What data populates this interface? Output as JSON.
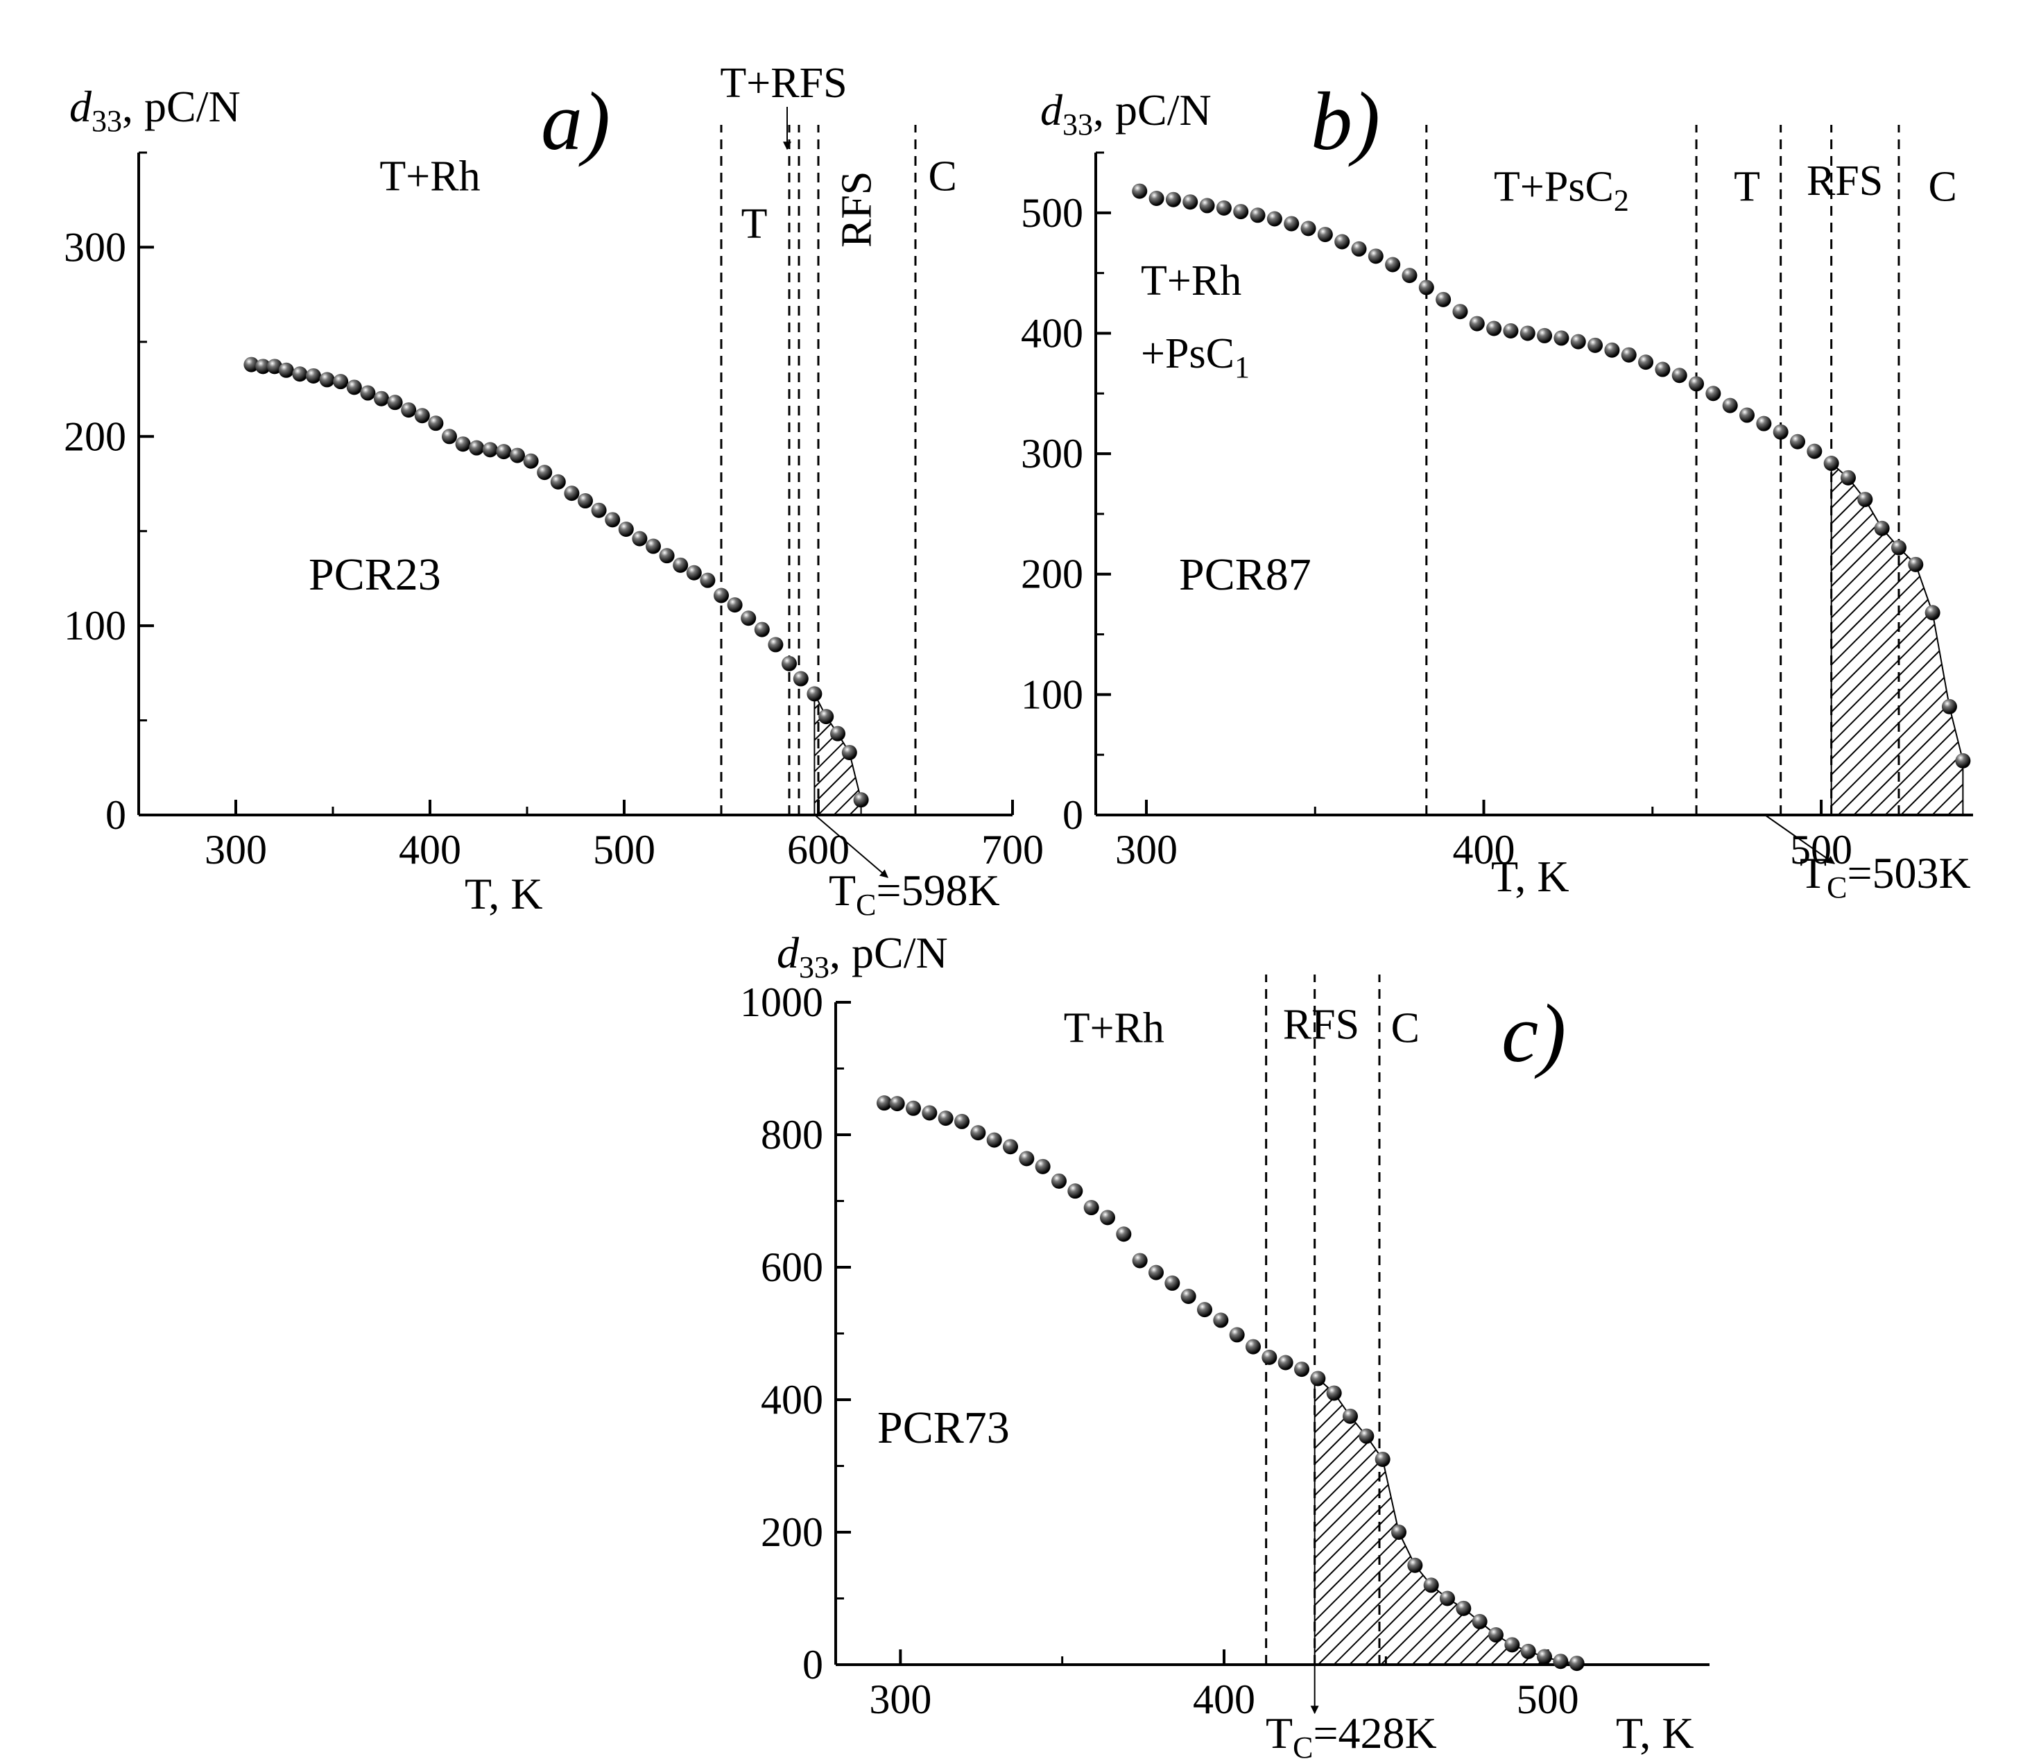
{
  "chart_data": [
    {
      "panel": "a)",
      "type": "scatter",
      "sample": "PCR23",
      "xlabel": "T, K",
      "ylabel": {
        "symbol": "d",
        "subscript": "33",
        "unit": ", pC/N"
      },
      "xlim": [
        250,
        700
      ],
      "ylim": [
        0,
        350
      ],
      "xticks": [
        300,
        400,
        500,
        600,
        700
      ],
      "yticks": [
        0,
        100,
        200,
        300
      ],
      "x": [
        308,
        314,
        320,
        326,
        333,
        340,
        347,
        354,
        361,
        368,
        375,
        382,
        389,
        396,
        403,
        410,
        417,
        424,
        431,
        438,
        445,
        452,
        459,
        466,
        473,
        480,
        487,
        494,
        501,
        508,
        515,
        522,
        529,
        536,
        543,
        550,
        557,
        564,
        571,
        578,
        585,
        591,
        598,
        604,
        610,
        616,
        622
      ],
      "y": [
        238,
        237,
        237,
        235,
        233,
        232,
        230,
        229,
        226,
        223,
        220,
        218,
        214,
        211,
        207,
        200,
        196,
        194,
        193,
        192,
        190,
        187,
        181,
        176,
        170,
        166,
        161,
        156,
        151,
        146,
        142,
        137,
        132,
        128,
        124,
        116,
        111,
        104,
        98,
        90,
        80,
        72,
        64,
        52,
        43,
        33,
        8
      ],
      "vlines": [
        550,
        585,
        590,
        600,
        650
      ],
      "hatch_from": 598,
      "tc": {
        "text": "T",
        "sub": "C",
        "rest": "=598K",
        "value": 598
      },
      "regions": [
        {
          "text": "T+Rh",
          "x": 400,
          "y": 330,
          "rotate": false
        },
        {
          "text": "T",
          "x": 567,
          "y": 305,
          "rotate": false
        },
        {
          "text": "RFS",
          "x": 627,
          "y": 320,
          "rotate": true
        },
        {
          "text": "C",
          "x": 664,
          "y": 330,
          "rotate": false
        }
      ],
      "top_label": "T+RFS"
    },
    {
      "panel": "b)",
      "type": "scatter",
      "sample": "PCR87",
      "xlabel": "T, K",
      "ylabel": {
        "symbol": "d",
        "subscript": "33",
        "unit": ", pC/N"
      },
      "xlim": [
        285,
        545
      ],
      "ylim": [
        0,
        550
      ],
      "xticks": [
        300,
        400,
        500
      ],
      "yticks": [
        0,
        100,
        200,
        300,
        400,
        500
      ],
      "x": [
        298,
        303,
        308,
        313,
        318,
        323,
        328,
        333,
        338,
        343,
        348,
        353,
        358,
        363,
        368,
        373,
        378,
        383,
        388,
        393,
        398,
        403,
        408,
        413,
        418,
        423,
        428,
        433,
        438,
        443,
        448,
        453,
        458,
        463,
        468,
        473,
        478,
        483,
        488,
        493,
        498,
        503,
        508,
        513,
        518,
        523,
        528,
        533,
        538,
        542
      ],
      "y": [
        518,
        512,
        511,
        509,
        506,
        504,
        501,
        498,
        495,
        491,
        487,
        482,
        476,
        470,
        464,
        457,
        448,
        438,
        428,
        418,
        408,
        404,
        402,
        400,
        398,
        396,
        393,
        390,
        386,
        382,
        376,
        370,
        365,
        358,
        350,
        340,
        332,
        325,
        318,
        310,
        302,
        292,
        280,
        262,
        238,
        222,
        208,
        168,
        90,
        45
      ],
      "vlines": [
        383,
        463,
        488,
        503,
        523
      ],
      "hatch_from": 503,
      "tc": {
        "text": "T",
        "sub": "C",
        "rest": "=503K",
        "value": 503
      },
      "regions": [
        {
          "text": "T+PsC",
          "sub": "2",
          "x": 423,
          "y": 510
        },
        {
          "text": "T",
          "x": 478,
          "y": 510
        },
        {
          "text": "RFS",
          "x": 507,
          "y": 515
        },
        {
          "text": "C",
          "x": 536,
          "y": 510
        }
      ],
      "region_left": {
        "line1": "T+Rh",
        "line2": "+PsC",
        "line2_sub": "1"
      }
    },
    {
      "panel": "c)",
      "type": "scatter",
      "sample": "PCR73",
      "xlabel": "T, K",
      "ylabel": {
        "symbol": "d",
        "subscript": "33",
        "unit": ", pC/N"
      },
      "xlim": [
        280,
        550
      ],
      "ylim": [
        0,
        1000
      ],
      "xticks": [
        300,
        400,
        500
      ],
      "yticks": [
        0,
        200,
        400,
        600,
        800,
        1000
      ],
      "x": [
        295,
        299,
        304,
        309,
        314,
        319,
        324,
        329,
        334,
        339,
        344,
        349,
        354,
        359,
        364,
        369,
        374,
        379,
        384,
        389,
        394,
        399,
        404,
        409,
        414,
        419,
        424,
        429,
        434,
        439,
        444,
        449,
        454,
        459,
        464,
        469,
        474,
        479,
        484,
        489,
        494,
        499,
        504,
        509
      ],
      "y": [
        848,
        847,
        840,
        833,
        825,
        820,
        803,
        792,
        782,
        764,
        752,
        730,
        715,
        690,
        675,
        650,
        610,
        592,
        576,
        556,
        536,
        520,
        498,
        480,
        464,
        456,
        446,
        432,
        410,
        375,
        345,
        310,
        200,
        150,
        120,
        100,
        85,
        65,
        45,
        30,
        20,
        12,
        5,
        2
      ],
      "vlines": [
        413,
        428,
        448
      ],
      "hatch_from": 428,
      "tc": {
        "text": "T",
        "sub": "C",
        "rest": "=428K",
        "value": 428
      },
      "regions": [
        {
          "text": "T+Rh",
          "x": 366,
          "y": 940
        },
        {
          "text": "RFS",
          "x": 430,
          "y": 945
        },
        {
          "text": "C",
          "x": 456,
          "y": 940
        }
      ]
    }
  ]
}
